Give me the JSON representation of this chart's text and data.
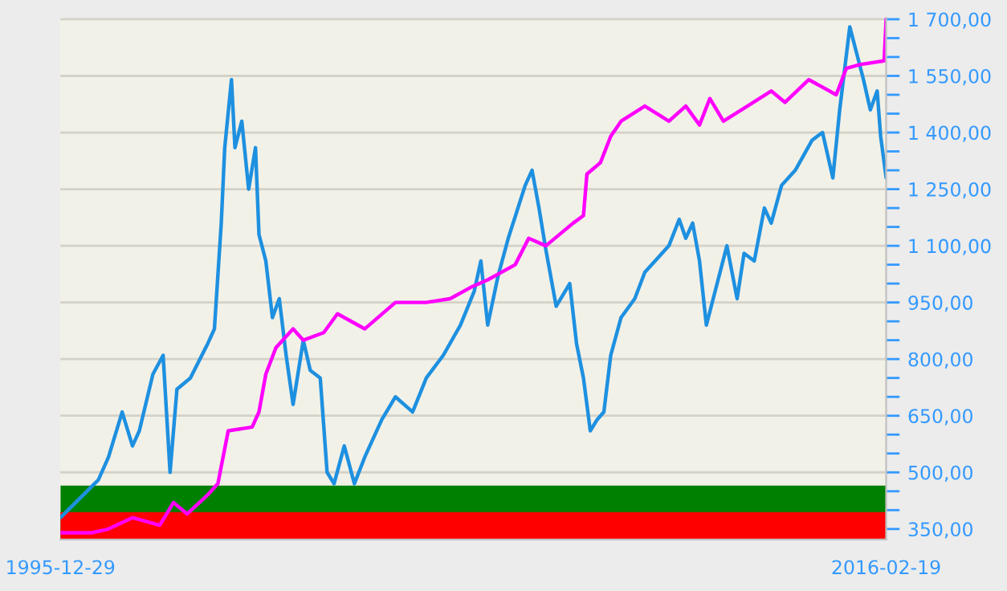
{
  "chart_data": {
    "type": "line",
    "series": [
      {
        "color": "#1e90e0",
        "x": [
          "1995-12-29",
          "1996-12",
          "1997-03",
          "1997-07",
          "1997-10",
          "1997-12",
          "1998-04",
          "1998-07",
          "1998-09",
          "1998-11",
          "1999-03",
          "1999-08",
          "1999-10",
          "1999-12",
          "2000-01",
          "2000-03",
          "2000-04",
          "2000-06",
          "2000-08",
          "2000-10",
          "2000-11",
          "2001-01",
          "2001-03",
          "2001-05",
          "2001-07",
          "2001-09",
          "2001-12",
          "2002-02",
          "2002-05",
          "2002-07",
          "2002-09",
          "2002-12",
          "2003-03",
          "2003-06",
          "2003-11",
          "2004-03",
          "2004-08",
          "2004-12",
          "2005-05",
          "2005-10",
          "2006-02",
          "2006-04",
          "2006-06",
          "2006-09",
          "2006-12",
          "2007-05",
          "2007-07",
          "2007-09",
          "2007-11",
          "2008-02",
          "2008-06",
          "2008-08",
          "2008-10",
          "2008-12",
          "2009-02",
          "2009-04",
          "2009-06",
          "2009-09",
          "2010-01",
          "2010-04",
          "2010-07",
          "2010-11",
          "2011-02",
          "2011-04",
          "2011-06",
          "2011-08",
          "2011-10",
          "2011-12",
          "2012-04",
          "2012-07",
          "2012-09",
          "2012-12",
          "2013-03",
          "2013-05",
          "2013-08",
          "2013-12",
          "2014-05",
          "2014-08",
          "2014-11",
          "2015-01",
          "2015-04",
          "2015-06",
          "2015-08",
          "2015-10",
          "2015-12",
          "2016-01",
          "2016-02-19"
        ],
        "values": [
          380,
          480,
          540,
          660,
          570,
          610,
          760,
          810,
          500,
          720,
          750,
          840,
          880,
          1160,
          1360,
          1540,
          1360,
          1430,
          1250,
          1360,
          1130,
          1060,
          910,
          960,
          810,
          680,
          850,
          770,
          750,
          500,
          470,
          570,
          470,
          540,
          640,
          700,
          660,
          750,
          810,
          890,
          980,
          1060,
          890,
          1020,
          1120,
          1260,
          1300,
          1200,
          1090,
          940,
          1000,
          840,
          750,
          610,
          640,
          660,
          810,
          910,
          960,
          1030,
          1060,
          1100,
          1170,
          1120,
          1160,
          1060,
          890,
          960,
          1100,
          960,
          1080,
          1060,
          1200,
          1160,
          1260,
          1300,
          1380,
          1400,
          1280,
          1460,
          1680,
          1610,
          1540,
          1460,
          1510,
          1390,
          1280
        ]
      },
      {
        "color": "#ff00ff",
        "x": [
          "1995-12-29",
          "1996-10",
          "1997-03",
          "1997-10",
          "1998-06",
          "1998-10",
          "1999-02",
          "1999-08",
          "1999-11",
          "2000-02",
          "2000-09",
          "2000-11",
          "2001-01",
          "2001-04",
          "2001-09",
          "2001-12",
          "2002-06",
          "2002-10",
          "2003-06",
          "2004-03",
          "2004-12",
          "2005-07",
          "2006-01",
          "2006-06",
          "2007-02",
          "2007-06",
          "2007-11",
          "2008-07",
          "2008-10",
          "2008-11",
          "2009-03",
          "2009-06",
          "2009-09",
          "2010-04",
          "2010-11",
          "2011-04",
          "2011-08",
          "2011-11",
          "2012-03",
          "2012-10",
          "2013-05",
          "2013-09",
          "2014-04",
          "2014-12",
          "2015-03",
          "2015-07",
          "2016-02",
          "2016-02-19"
        ],
        "values": [
          340,
          340,
          350,
          380,
          360,
          420,
          390,
          440,
          470,
          610,
          620,
          660,
          760,
          830,
          880,
          850,
          870,
          920,
          880,
          950,
          950,
          960,
          990,
          1010,
          1050,
          1120,
          1100,
          1160,
          1180,
          1290,
          1320,
          1390,
          1430,
          1470,
          1430,
          1470,
          1420,
          1490,
          1430,
          1470,
          1510,
          1480,
          1540,
          1500,
          1570,
          1580,
          1590,
          1700
        ]
      }
    ],
    "bands": [
      {
        "axis": "y",
        "from": 322,
        "to": 465,
        "color": "#008000"
      },
      {
        "axis": "y",
        "from": 322,
        "to": 395,
        "color": "#ff0000"
      }
    ],
    "xlim": [
      "1995-12-29",
      "2016-02-19"
    ],
    "xticks": [
      {
        "value": "1995-12-29",
        "label": "1995-12-29"
      },
      {
        "value": "2016-02-19",
        "label": "2016-02-19"
      }
    ],
    "ylim": [
      322,
      1704
    ],
    "yticks": [
      {
        "value": 350,
        "label": "350,00"
      },
      {
        "value": 400,
        "label": null
      },
      {
        "value": 450,
        "label": null
      },
      {
        "value": 500,
        "label": "500,00"
      },
      {
        "value": 550,
        "label": null
      },
      {
        "value": 600,
        "label": null
      },
      {
        "value": 650,
        "label": "650,00"
      },
      {
        "value": 700,
        "label": null
      },
      {
        "value": 750,
        "label": null
      },
      {
        "value": 800,
        "label": "800,00"
      },
      {
        "value": 850,
        "label": null
      },
      {
        "value": 900,
        "label": null
      },
      {
        "value": 950,
        "label": "950,00"
      },
      {
        "value": 1000,
        "label": null
      },
      {
        "value": 1050,
        "label": null
      },
      {
        "value": 1100,
        "label": "1 100,00"
      },
      {
        "value": 1150,
        "label": null
      },
      {
        "value": 1200,
        "label": null
      },
      {
        "value": 1250,
        "label": "1 250,00"
      },
      {
        "value": 1300,
        "label": null
      },
      {
        "value": 1350,
        "label": null
      },
      {
        "value": 1400,
        "label": "1 400,00"
      },
      {
        "value": 1450,
        "label": null
      },
      {
        "value": 1500,
        "label": null
      },
      {
        "value": 1550,
        "label": "1 550,00"
      },
      {
        "value": 1600,
        "label": null
      },
      {
        "value": 1650,
        "label": null
      },
      {
        "value": 1700,
        "label": "1 700,00"
      }
    ],
    "grid": "y",
    "legend": false,
    "line_style": "solid"
  }
}
